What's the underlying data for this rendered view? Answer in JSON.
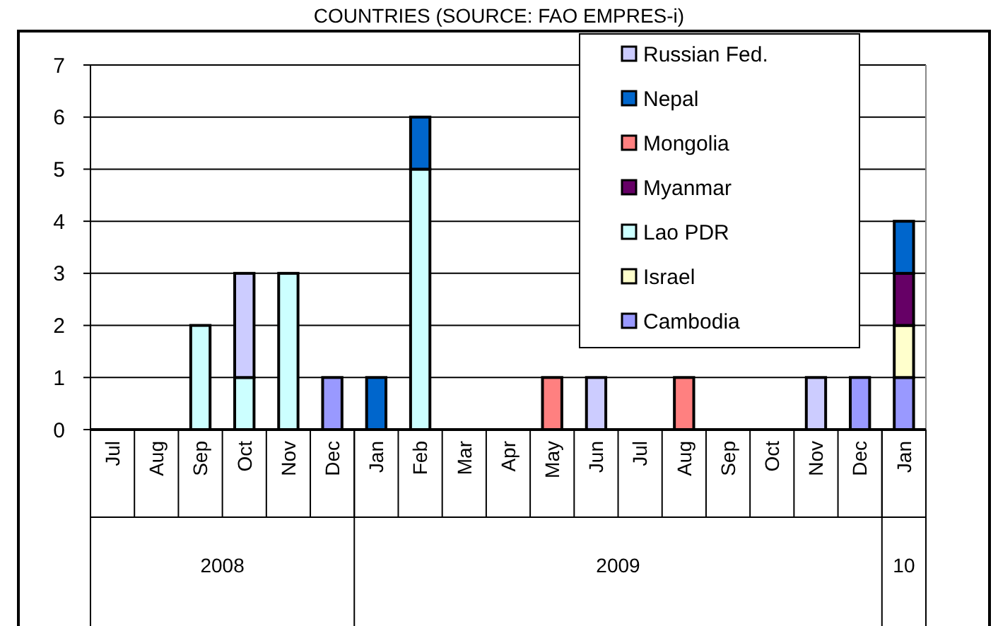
{
  "chart_data": {
    "type": "bar",
    "title": "COUNTRIES (SOURCE: FAO EMPRES-i)",
    "categories": [
      "Jul",
      "Aug",
      "Sep",
      "Oct",
      "Nov",
      "Dec",
      "Jan",
      "Feb",
      "Mar",
      "Apr",
      "May",
      "Jun",
      "Jul",
      "Aug",
      "Sep",
      "Oct",
      "Nov",
      "Dec",
      "Jan"
    ],
    "annotations": [
      "2008",
      "2009",
      "10"
    ],
    "stacked": true,
    "series": [
      {
        "name": "Cambodia",
        "color": "#9999ff",
        "values": [
          null,
          null,
          null,
          null,
          null,
          1,
          null,
          null,
          null,
          null,
          null,
          null,
          null,
          null,
          null,
          null,
          null,
          1,
          1
        ]
      },
      {
        "name": "Israel",
        "color": "#ffffcc",
        "values": [
          null,
          null,
          null,
          null,
          null,
          null,
          null,
          null,
          null,
          null,
          null,
          null,
          null,
          null,
          null,
          null,
          null,
          null,
          1
        ]
      },
      {
        "name": "Lao PDR",
        "color": "#ccffff",
        "values": [
          null,
          null,
          2,
          1,
          3,
          null,
          null,
          5,
          null,
          null,
          null,
          null,
          null,
          null,
          null,
          null,
          null,
          null,
          null
        ]
      },
      {
        "name": "Myanmar",
        "color": "#660066",
        "values": [
          null,
          null,
          null,
          null,
          null,
          null,
          null,
          null,
          null,
          null,
          null,
          null,
          null,
          null,
          null,
          null,
          null,
          null,
          1
        ]
      },
      {
        "name": "Mongolia",
        "color": "#ff8080",
        "values": [
          null,
          null,
          null,
          null,
          null,
          null,
          null,
          null,
          null,
          null,
          1,
          null,
          null,
          1,
          null,
          null,
          null,
          null,
          null
        ]
      },
      {
        "name": "Nepal",
        "color": "#0066cc",
        "values": [
          null,
          null,
          null,
          null,
          null,
          null,
          1,
          1,
          null,
          null,
          null,
          null,
          null,
          null,
          null,
          null,
          null,
          null,
          1
        ]
      },
      {
        "name": "Russian Fed.",
        "color": "#ccccff",
        "values": [
          null,
          null,
          null,
          2,
          null,
          null,
          null,
          null,
          null,
          null,
          null,
          1,
          null,
          null,
          null,
          null,
          1,
          null,
          null
        ]
      }
    ],
    "ylim": [
      0,
      7
    ],
    "yticks": [
      0,
      1,
      2,
      3,
      4,
      5,
      6,
      7
    ],
    "grid": "y",
    "legend": "top right"
  }
}
